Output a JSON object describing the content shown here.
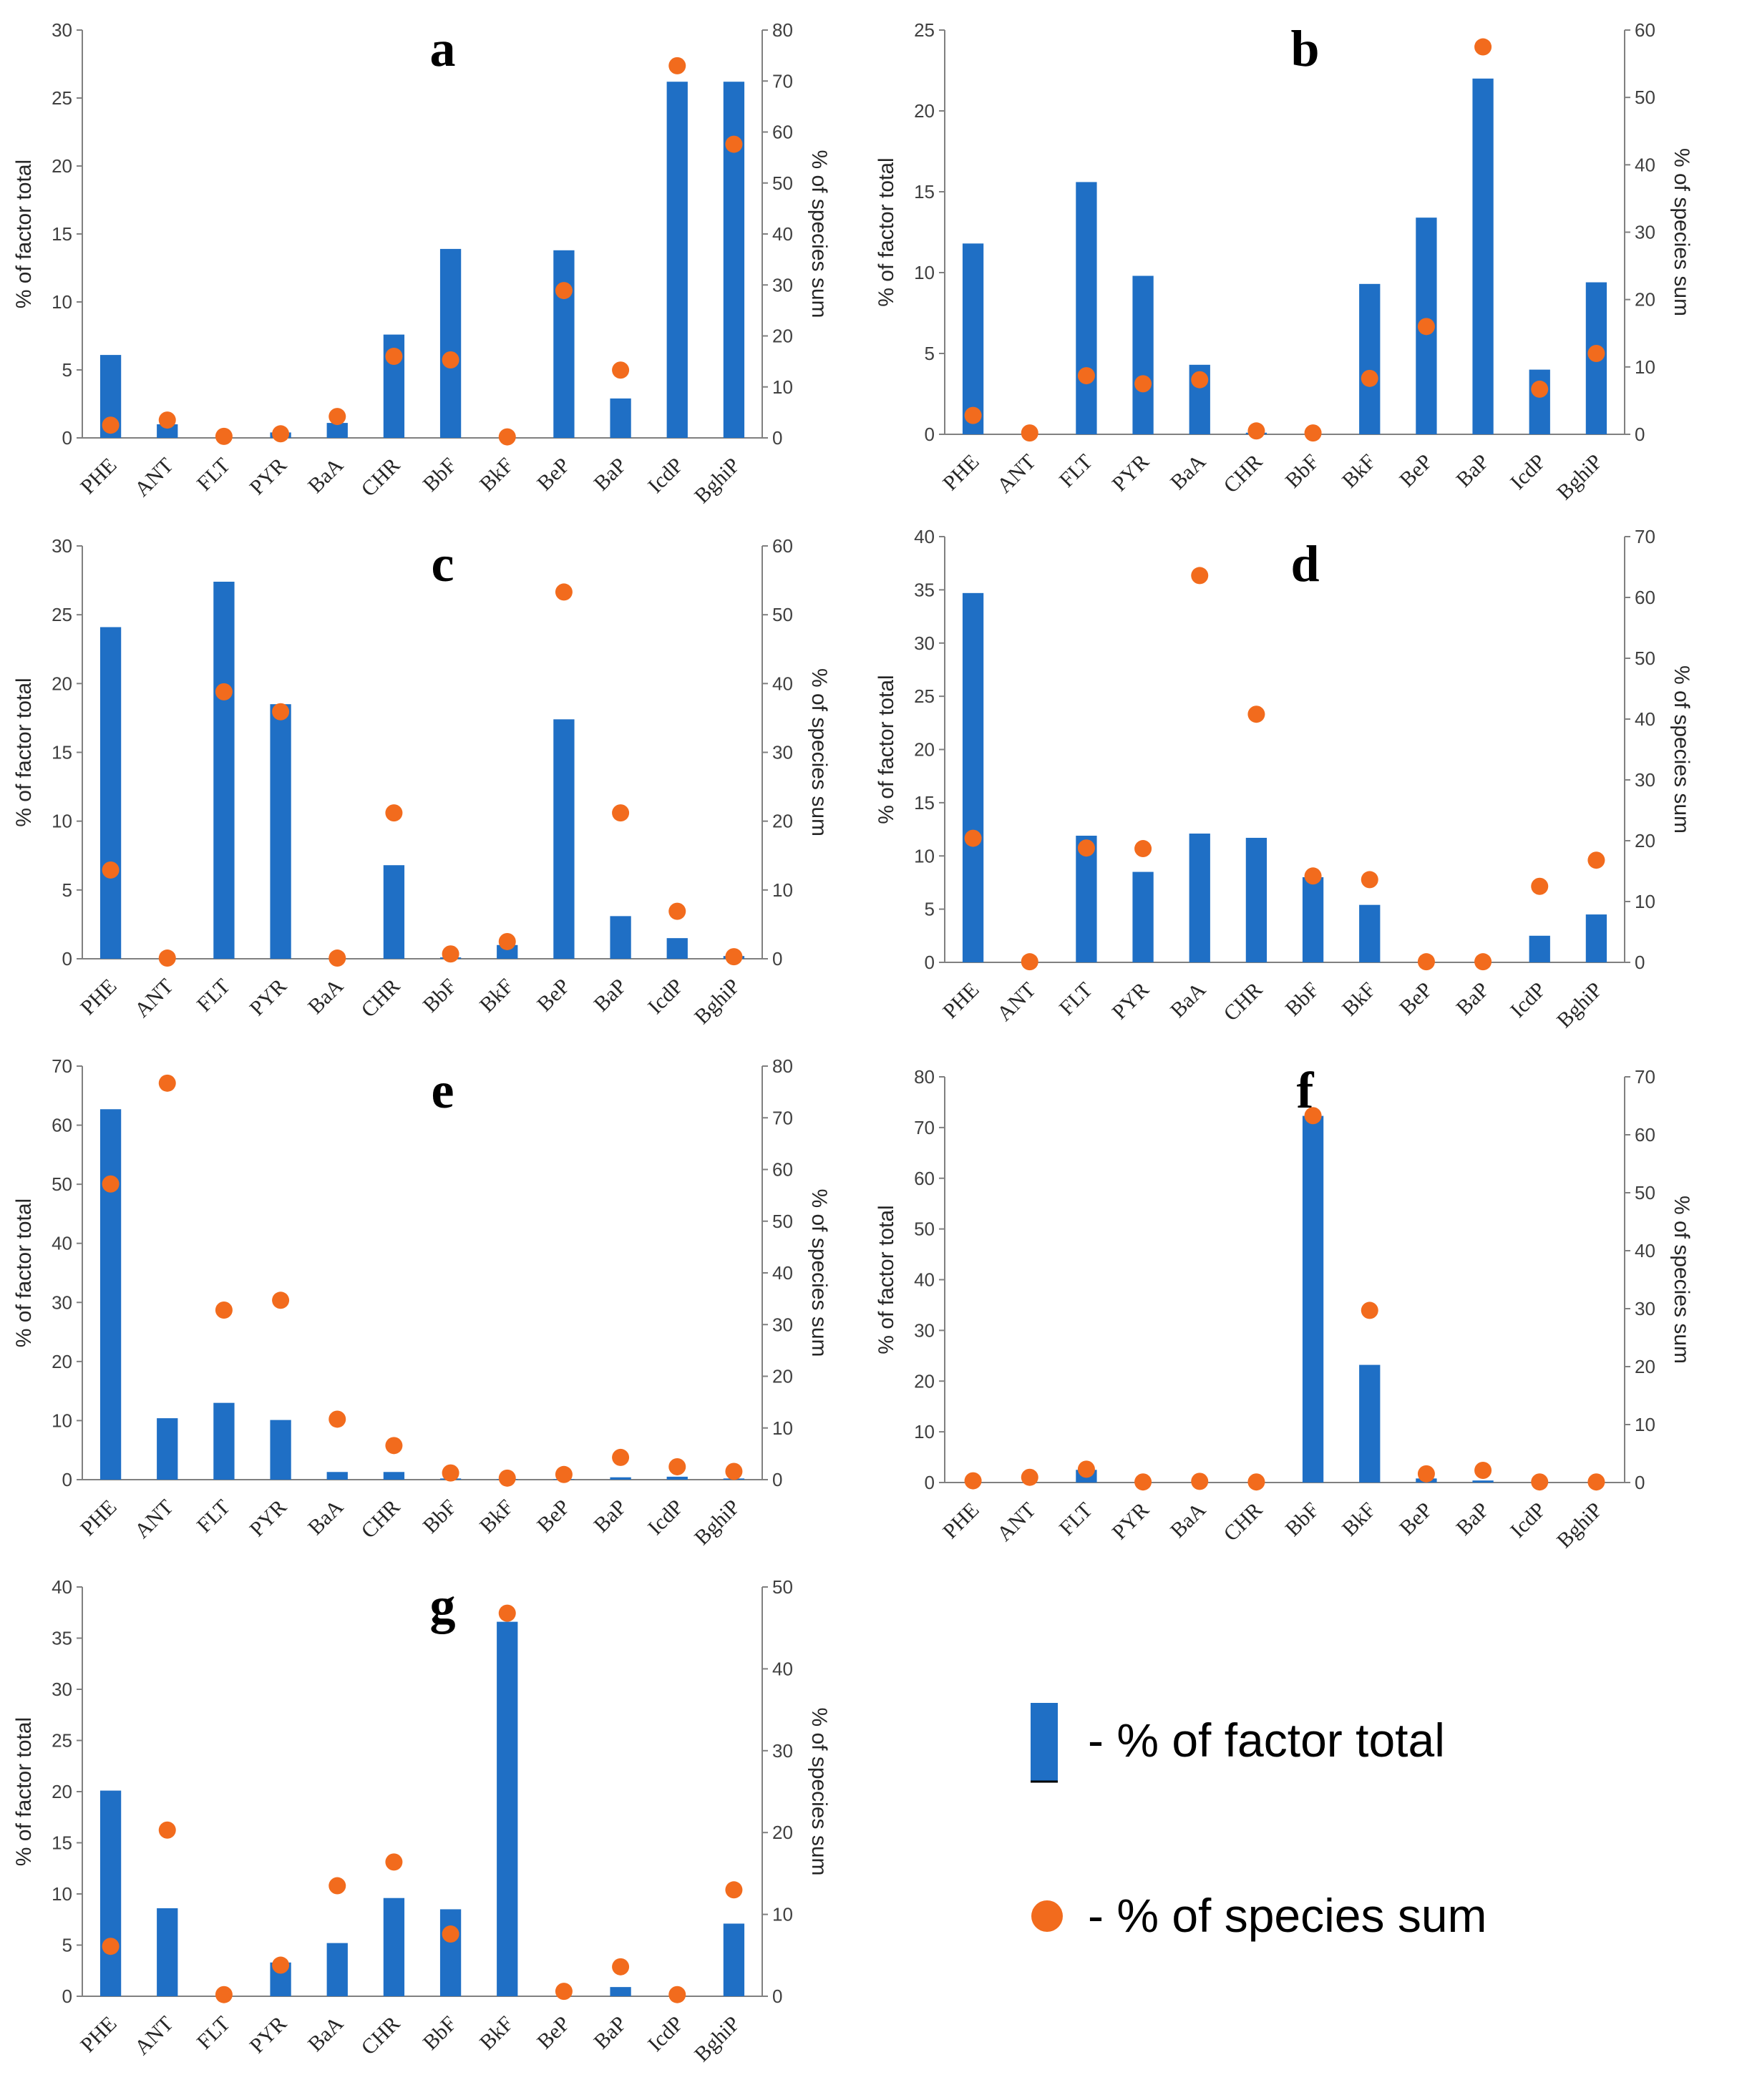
{
  "colors": {
    "bar": "#1f6fc5",
    "dot": "#f26b1d",
    "axis": "#808080"
  },
  "legend": {
    "bar_label": "- % of factor total",
    "dot_label": "- % of species sum"
  },
  "chart_data": [
    {
      "type": "bar+scatter",
      "panel": "a",
      "ylabel": "% of factor total",
      "y2label": "% of species sum",
      "categories": [
        "PHE",
        "ANT",
        "FLT",
        "PYR",
        "BaA",
        "CHR",
        "BbF",
        "BkF",
        "BeP",
        "BaP",
        "IcdP",
        "BghiP"
      ],
      "ylim": [
        0,
        30
      ],
      "yticks": [
        0,
        5,
        10,
        15,
        20,
        25,
        30
      ],
      "y2lim": [
        0,
        80
      ],
      "y2ticks": [
        0,
        10,
        20,
        30,
        40,
        50,
        60,
        70,
        80
      ],
      "series": [
        {
          "name": "% of factor total",
          "axis": "left",
          "values": [
            6.1,
            1.0,
            0,
            0.4,
            1.1,
            7.6,
            13.9,
            0,
            13.8,
            2.9,
            26.2,
            26.2
          ]
        },
        {
          "name": "% of species sum",
          "axis": "right",
          "values": [
            2.5,
            3.5,
            0.3,
            0.8,
            4.2,
            16,
            15.3,
            0.2,
            28.9,
            13.3,
            73,
            57.6
          ]
        }
      ]
    },
    {
      "type": "bar+scatter",
      "panel": "b",
      "ylabel": "% of factor total",
      "y2label": "% of species sum",
      "categories": [
        "PHE",
        "ANT",
        "FLT",
        "PYR",
        "BaA",
        "CHR",
        "BbF",
        "BkF",
        "BeP",
        "BaP",
        "IcdP",
        "BghiP"
      ],
      "ylim": [
        0,
        25
      ],
      "yticks": [
        0,
        5,
        10,
        15,
        20,
        25
      ],
      "y2lim": [
        0,
        60
      ],
      "y2ticks": [
        0,
        10,
        20,
        30,
        40,
        50,
        60
      ],
      "series": [
        {
          "name": "% of factor total",
          "axis": "left",
          "values": [
            11.8,
            0,
            15.6,
            9.8,
            4.3,
            0.1,
            0,
            9.3,
            13.4,
            22,
            4,
            9.4
          ]
        },
        {
          "name": "% of species sum",
          "axis": "right",
          "values": [
            2.8,
            0.2,
            8.7,
            7.5,
            8.1,
            0.5,
            0.2,
            8.3,
            16,
            57.5,
            6.7,
            12
          ]
        }
      ]
    },
    {
      "type": "bar+scatter",
      "panel": "c",
      "ylabel": "% of factor total",
      "y2label": "% of species sum",
      "categories": [
        "PHE",
        "ANT",
        "FLT",
        "PYR",
        "BaA",
        "CHR",
        "BbF",
        "BkF",
        "BeP",
        "BaP",
        "IcdP",
        "BghiP"
      ],
      "ylim": [
        0,
        30
      ],
      "yticks": [
        0,
        5,
        10,
        15,
        20,
        25,
        30
      ],
      "y2lim": [
        0,
        60
      ],
      "y2ticks": [
        0,
        10,
        20,
        30,
        40,
        50,
        60
      ],
      "series": [
        {
          "name": "% of factor total",
          "axis": "left",
          "values": [
            24.1,
            0,
            27.4,
            18.5,
            0,
            6.8,
            0.1,
            1,
            17.4,
            3.1,
            1.5,
            0.2
          ]
        },
        {
          "name": "% of species sum",
          "axis": "right",
          "values": [
            12.9,
            0.1,
            38.8,
            35.9,
            0.1,
            21.2,
            0.7,
            2.5,
            53.3,
            21.2,
            6.9,
            0.3
          ]
        }
      ]
    },
    {
      "type": "bar+scatter",
      "panel": "d",
      "ylabel": "% of factor total",
      "y2label": "% of species sum",
      "categories": [
        "PHE",
        "ANT",
        "FLT",
        "PYR",
        "BaA",
        "CHR",
        "BbF",
        "BkF",
        "BeP",
        "BaP",
        "IcdP",
        "BghiP"
      ],
      "ylim": [
        0,
        40
      ],
      "yticks": [
        0,
        5,
        10,
        15,
        20,
        25,
        30,
        35,
        40
      ],
      "y2lim": [
        0,
        70
      ],
      "y2ticks": [
        0,
        10,
        20,
        30,
        40,
        50,
        60,
        70
      ],
      "series": [
        {
          "name": "% of factor total",
          "axis": "left",
          "values": [
            34.7,
            0,
            11.9,
            8.5,
            12.1,
            11.7,
            8.0,
            5.4,
            0,
            0,
            2.5,
            4.5
          ]
        },
        {
          "name": "% of species sum",
          "axis": "right",
          "values": [
            20.4,
            0.1,
            18.8,
            18.7,
            63.6,
            40.8,
            14.2,
            13.6,
            0.1,
            0.1,
            12.5,
            16.8
          ]
        }
      ]
    },
    {
      "type": "bar+scatter",
      "panel": "e",
      "ylabel": "% of factor total",
      "y2label": "% of species sum",
      "categories": [
        "PHE",
        "ANT",
        "FLT",
        "PYR",
        "BaA",
        "CHR",
        "BbF",
        "BkF",
        "BeP",
        "BaP",
        "IcdP",
        "BghiP"
      ],
      "ylim": [
        0,
        70
      ],
      "yticks": [
        0,
        10,
        20,
        30,
        40,
        50,
        60,
        70
      ],
      "y2lim": [
        0,
        80
      ],
      "y2ticks": [
        0,
        10,
        20,
        30,
        40,
        50,
        60,
        70,
        80
      ],
      "series": [
        {
          "name": "% of factor total",
          "axis": "left",
          "values": [
            62.7,
            10.4,
            13,
            10.1,
            1.3,
            1.3,
            0.2,
            0.1,
            0.1,
            0.4,
            0.5,
            0.2
          ]
        },
        {
          "name": "% of species sum",
          "axis": "right",
          "values": [
            57.2,
            76.7,
            32.8,
            34.7,
            11.7,
            6.6,
            1.3,
            0.3,
            1,
            4.3,
            2.5,
            1.6
          ]
        }
      ]
    },
    {
      "type": "bar+scatter",
      "panel": "f",
      "ylabel": "% of factor total",
      "y2label": "% of species sum",
      "categories": [
        "PHE",
        "ANT",
        "FLT",
        "PYR",
        "BaA",
        "CHR",
        "BbF",
        "BkF",
        "BeP",
        "BaP",
        "IcdP",
        "BghiP"
      ],
      "ylim": [
        0,
        80
      ],
      "yticks": [
        0,
        10,
        20,
        30,
        40,
        50,
        60,
        70,
        80
      ],
      "y2lim": [
        0,
        70
      ],
      "y2ticks": [
        0,
        10,
        20,
        30,
        40,
        50,
        60,
        70
      ],
      "series": [
        {
          "name": "% of factor total",
          "axis": "left",
          "values": [
            0,
            0,
            2.5,
            0,
            0,
            0,
            72.3,
            23.2,
            0.8,
            0.4,
            0,
            0
          ]
        },
        {
          "name": "% of species sum",
          "axis": "right",
          "values": [
            0.3,
            0.9,
            2.3,
            0.1,
            0.2,
            0.1,
            63.3,
            29.7,
            1.5,
            2.1,
            0.1,
            0.1
          ]
        }
      ]
    },
    {
      "type": "bar+scatter",
      "panel": "g",
      "ylabel": "% of factor total",
      "y2label": "% of species sum",
      "categories": [
        "PHE",
        "ANT",
        "FLT",
        "PYR",
        "BaA",
        "CHR",
        "BbF",
        "BkF",
        "BeP",
        "BaP",
        "IcdP",
        "BghiP"
      ],
      "ylim": [
        0,
        40
      ],
      "yticks": [
        0,
        5,
        10,
        15,
        20,
        25,
        30,
        35,
        40
      ],
      "y2lim": [
        0,
        50
      ],
      "y2ticks": [
        0,
        10,
        20,
        30,
        40,
        50
      ],
      "series": [
        {
          "name": "% of factor total",
          "axis": "left",
          "values": [
            20.1,
            8.6,
            0,
            3.3,
            5.2,
            9.6,
            8.5,
            36.6,
            0,
            0.9,
            0,
            7.1
          ]
        },
        {
          "name": "% of species sum",
          "axis": "right",
          "values": [
            6.1,
            20.3,
            0.2,
            3.8,
            13.5,
            16.4,
            7.6,
            46.8,
            0.6,
            3.6,
            0.2,
            13
          ]
        }
      ]
    }
  ]
}
